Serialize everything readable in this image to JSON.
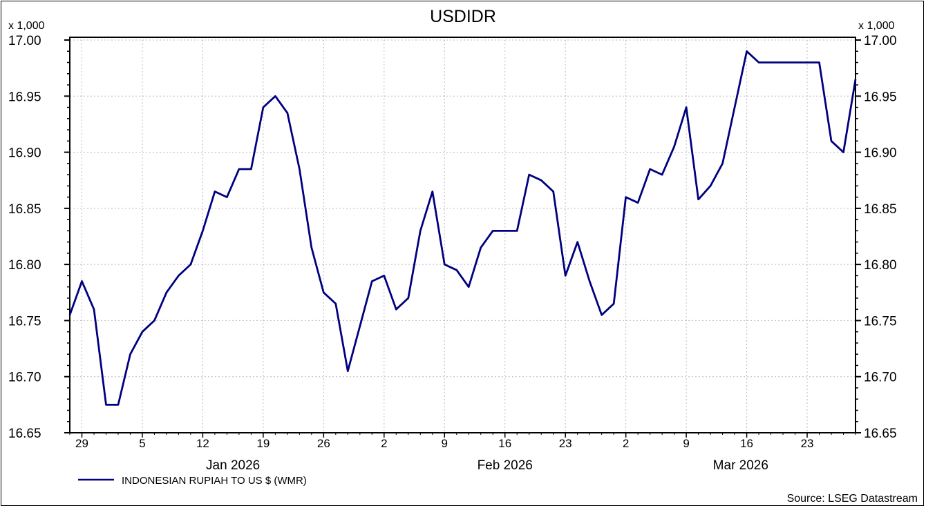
{
  "chart_data": {
    "type": "line",
    "title": "USDIDR",
    "y_multiplier_label": "x 1,000",
    "ylim": [
      16.65,
      17.0
    ],
    "y_ticks": [
      "17.00",
      "16.95",
      "16.90",
      "16.85",
      "16.80",
      "16.75",
      "16.70",
      "16.65"
    ],
    "y_tick_values": [
      17.0,
      16.95,
      16.9,
      16.85,
      16.8,
      16.75,
      16.7,
      16.65
    ],
    "x_unit": "weekday index starting Fri 26 Dec 2025",
    "x_ticks": [
      {
        "label": "29",
        "index": 1
      },
      {
        "label": "5",
        "index": 6
      },
      {
        "label": "12",
        "index": 11
      },
      {
        "label": "19",
        "index": 16
      },
      {
        "label": "26",
        "index": 21
      },
      {
        "label": "2",
        "index": 26
      },
      {
        "label": "9",
        "index": 31
      },
      {
        "label": "16",
        "index": 36
      },
      {
        "label": "23",
        "index": 41
      },
      {
        "label": "2",
        "index": 46
      },
      {
        "label": "9",
        "index": 51
      },
      {
        "label": "16",
        "index": 56
      },
      {
        "label": "23",
        "index": 61
      }
    ],
    "month_labels": [
      {
        "label": "Jan 2026",
        "index": 13.5
      },
      {
        "label": "Feb 2026",
        "index": 36
      },
      {
        "label": "Mar 2026",
        "index": 55.5
      }
    ],
    "grid": true,
    "legend_position": "bottom-left",
    "series": [
      {
        "name": "INDONESIAN RUPIAH TO US $ (WMR)",
        "color": "#000080",
        "values": [
          16.755,
          16.785,
          16.76,
          16.675,
          16.675,
          16.72,
          16.74,
          16.75,
          16.775,
          16.79,
          16.8,
          16.83,
          16.865,
          16.86,
          16.885,
          16.885,
          16.94,
          16.95,
          16.935,
          16.885,
          16.815,
          16.775,
          16.765,
          16.705,
          16.745,
          16.785,
          16.79,
          16.76,
          16.77,
          16.83,
          16.865,
          16.8,
          16.795,
          16.78,
          16.815,
          16.83,
          16.83,
          16.83,
          16.88,
          16.875,
          16.865,
          16.79,
          16.82,
          16.785,
          16.755,
          16.765,
          16.86,
          16.855,
          16.885,
          16.88,
          16.905,
          16.94,
          16.858,
          16.87,
          16.89,
          16.94,
          16.99,
          16.98,
          16.98,
          16.98,
          16.98,
          16.98,
          16.98,
          16.91,
          16.9,
          16.965
        ]
      }
    ],
    "source": "Source: LSEG Datastream"
  }
}
